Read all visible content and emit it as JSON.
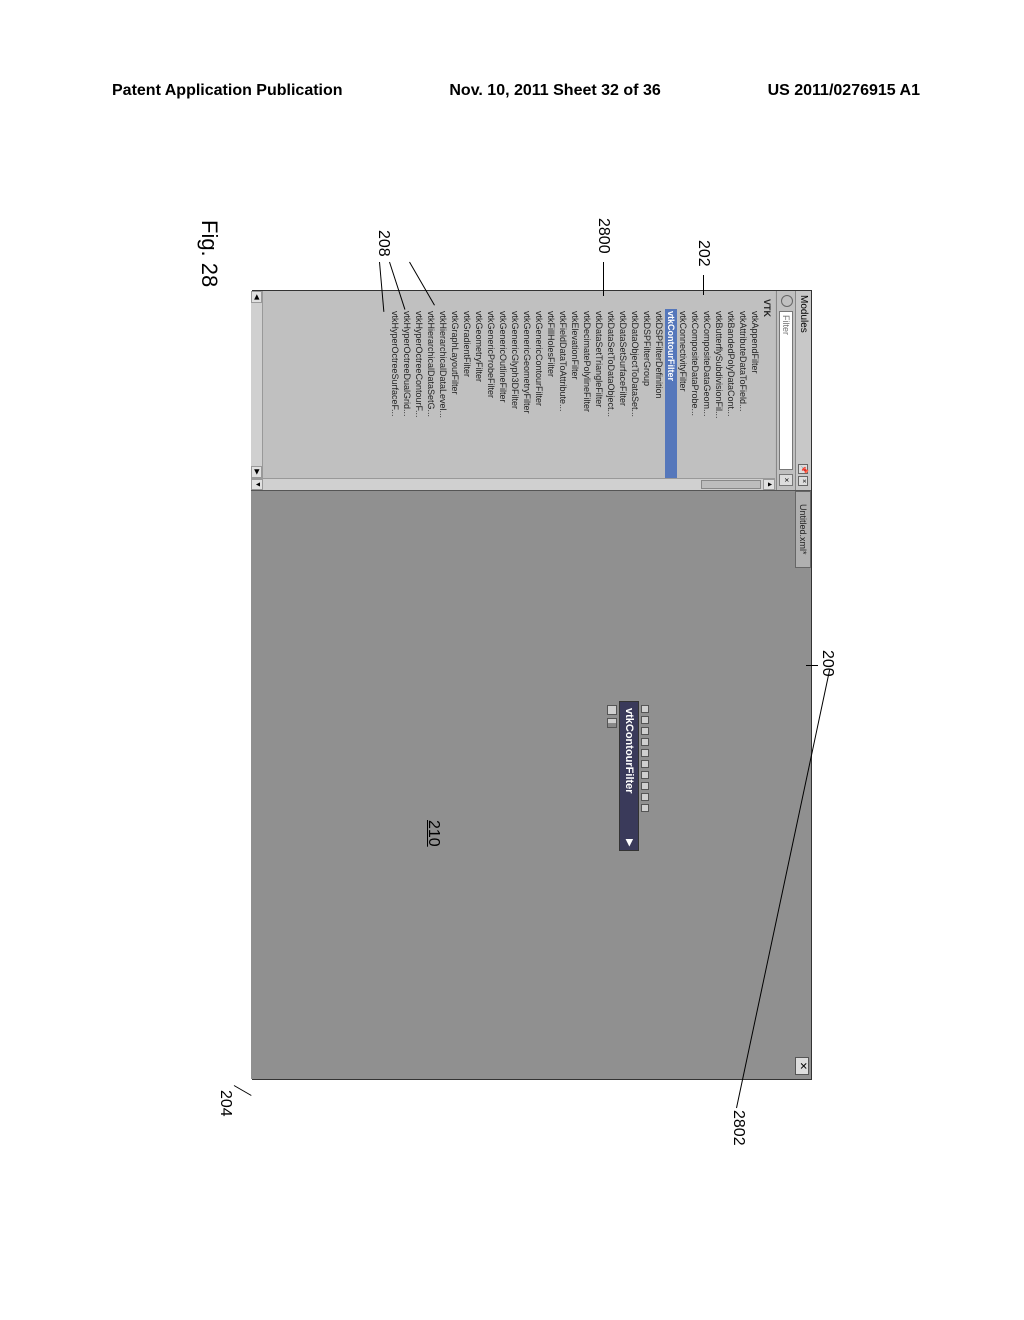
{
  "header": {
    "left": "Patent Application Publication",
    "center": "Nov. 10, 2011  Sheet 32 of 36",
    "right": "US 2011/0276915 A1"
  },
  "figure_label": "Fig. 28",
  "app": {
    "modules_panel_title": "Modules",
    "search_placeholder": "Filter",
    "tree_root": "VTK",
    "tree_items": [
      "vtkAppendFilter",
      "vtkAttributeDataToField...",
      "vtkBandedPolyDataCont...",
      "vtkButterflySubdivisionFil...",
      "vtkCompositeDataGeom...",
      "vtkCompositeDataProbe...",
      "vtkConnectivityFilter",
      "vtkContourFilter",
      "vtkDSPFilterDefinition",
      "vtkDSPFilterGroup",
      "vtkDataObjectToDataSet...",
      "vtkDataSetSurfaceFilter",
      "vtkDataSetToDataObject...",
      "vtkDataSetTriangleFilter",
      "vtkDecimatePolylineFilter",
      "vtkElevationFilter",
      "vtkFieldDataToAttribute...",
      "vtkFillHolesFilter",
      "vtkGenericContourFilter",
      "vtkGenericGeometryFilter",
      "vtkGenericGlyph3DFilter",
      "vtkGenericOutlineFilter",
      "vtkGenericProbeFilter",
      "vtkGeometryFilter",
      "vtkGradientFilter",
      "vtkGraphLayoutFilter",
      "vtkHierarchicalDataLevel...",
      "vtkHierarchicalDataSetG...",
      "vtkHyperOctreeContourF...",
      "vtkHyperOctreeDualGrid...",
      "vtkHyperOctreeSurfaceF..."
    ],
    "selected_index": 7,
    "canvas_tab": "Untitled.xml*",
    "node_title": "vtkContourFilter",
    "node_top_ports": 10,
    "node_bottom_ports": 2,
    "window_close": "✕"
  },
  "callouts": {
    "c200": "200",
    "c202": "202",
    "c204": "204",
    "c208": "208",
    "c210": "210",
    "c2800": "2800",
    "c2802": "2802"
  },
  "colors": {
    "window_bg": "#999999",
    "panel_bg": "#bbbbbb",
    "canvas_bg": "#909090",
    "selected_bg": "#5577bb",
    "node_title_bg": "#3a3a5a"
  }
}
